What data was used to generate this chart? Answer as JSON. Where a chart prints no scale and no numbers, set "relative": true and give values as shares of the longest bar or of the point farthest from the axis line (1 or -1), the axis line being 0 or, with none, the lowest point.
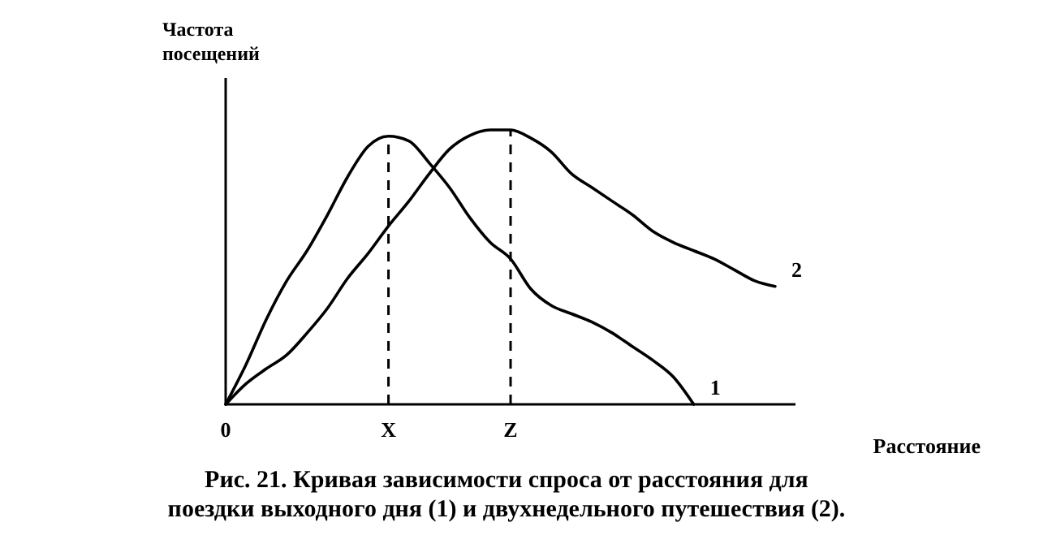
{
  "chart_data": {
    "type": "line",
    "relative": true,
    "title": "Рис. 21. Кривая зависимости спроса от расстояния для поездки выходного дня (1) и двухнедельного путешествия (2).",
    "xlabel": "Расстояние",
    "ylabel": "Частота посещений",
    "categories": [
      "0",
      null,
      null,
      null,
      null,
      null,
      null,
      null,
      "X",
      null,
      null,
      null,
      null,
      null,
      "Z",
      null,
      null,
      null,
      null,
      null,
      null,
      null,
      null,
      null,
      null,
      null,
      null,
      null,
      null
    ],
    "series": [
      {
        "name": "1",
        "color": "#000000",
        "values": [
          0,
          0.145,
          0.31,
          0.45,
          0.56,
          0.69,
          0.83,
          0.94,
          0.977,
          0.96,
          0.88,
          0.79,
          0.68,
          0.59,
          0.53,
          0.42,
          0.36,
          0.33,
          0.3,
          0.26,
          0.21,
          0.16,
          0.1,
          0,
          null,
          null,
          null,
          null,
          null
        ]
      },
      {
        "name": "2",
        "color": "#000000",
        "values": [
          0,
          0.075,
          0.13,
          0.18,
          0.26,
          0.35,
          0.46,
          0.55,
          0.65,
          0.74,
          0.84,
          0.93,
          0.98,
          1,
          1,
          0.97,
          0.92,
          0.84,
          0.79,
          0.74,
          0.69,
          0.63,
          0.59,
          0.56,
          0.53,
          0.49,
          0.45,
          0.43,
          null
        ]
      }
    ],
    "ref_lines": [
      {
        "axis": "x",
        "value": "X",
        "line_style": "dashed"
      },
      {
        "axis": "x",
        "value": "Z",
        "line_style": "dashed"
      }
    ],
    "legend": false,
    "marker": "none",
    "line_style": "solid"
  }
}
